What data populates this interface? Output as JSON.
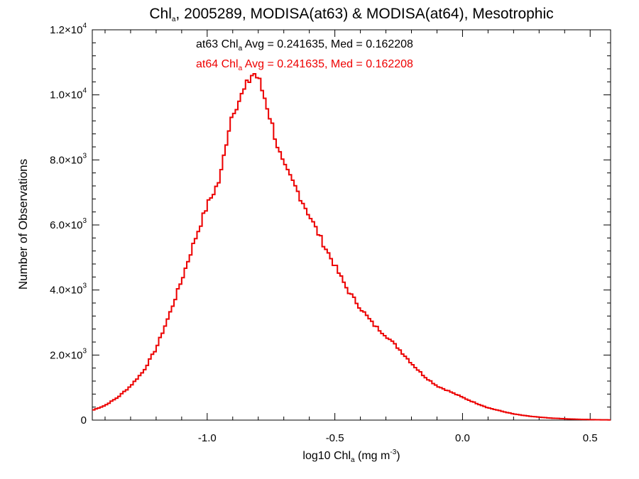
{
  "title": {
    "prefix": "Chl",
    "sub": "a",
    "rest": ", 2005289, MODISA(at63) & MODISA(at64), Mesotrophic"
  },
  "annotations": [
    {
      "label": "at63 Chl",
      "sub": "a",
      "rest": " Avg = 0.241635, Med = 0.162208",
      "color": "#000000"
    },
    {
      "label": "at64 Chl",
      "sub": "a",
      "rest": " Avg = 0.241635, Med = 0.162208",
      "color": "#ee0000"
    }
  ],
  "xaxis": {
    "label_prefix": "log10 Chl",
    "label_sub": "a",
    "label_rest": " (mg m",
    "label_sup": "-3",
    "label_end": ")"
  },
  "yaxis": {
    "label": "Number of Observations"
  },
  "colors": {
    "at63": "#000000",
    "at64": "#ee0000",
    "axes": "#000000"
  },
  "chart_data": {
    "type": "line",
    "step": true,
    "xlim": [
      -1.45,
      0.58
    ],
    "ylim": [
      0,
      12000
    ],
    "x_ticks": [
      {
        "value": -1.0,
        "label": "-1.0"
      },
      {
        "value": -0.5,
        "label": "-0.5"
      },
      {
        "value": 0.0,
        "label": "0.0"
      },
      {
        "value": 0.5,
        "label": "0.5"
      }
    ],
    "y_ticks": [
      {
        "value": 0,
        "mant": "0",
        "exp": ""
      },
      {
        "value": 2000,
        "mant": "2.0×10",
        "exp": "3"
      },
      {
        "value": 4000,
        "mant": "4.0×10",
        "exp": "3"
      },
      {
        "value": 6000,
        "mant": "6.0×10",
        "exp": "3"
      },
      {
        "value": 8000,
        "mant": "8.0×10",
        "exp": "3"
      },
      {
        "value": 10000,
        "mant": "1.0×10",
        "exp": "4"
      },
      {
        "value": 12000,
        "mant": "1.2×10",
        "exp": "4"
      }
    ],
    "curve_points": [
      [
        -1.45,
        300
      ],
      [
        -1.4,
        450
      ],
      [
        -1.35,
        700
      ],
      [
        -1.3,
        1050
      ],
      [
        -1.25,
        1500
      ],
      [
        -1.2,
        2200
      ],
      [
        -1.15,
        3200
      ],
      [
        -1.1,
        4300
      ],
      [
        -1.05,
        5500
      ],
      [
        -1.0,
        6600
      ],
      [
        -0.95,
        7400
      ],
      [
        -0.92,
        8800
      ],
      [
        -0.9,
        9500
      ],
      [
        -0.87,
        9900
      ],
      [
        -0.85,
        10200
      ],
      [
        -0.82,
        10700
      ],
      [
        -0.8,
        10500
      ],
      [
        -0.77,
        9800
      ],
      [
        -0.75,
        9200
      ],
      [
        -0.72,
        8300
      ],
      [
        -0.7,
        7800
      ],
      [
        -0.65,
        7100
      ],
      [
        -0.6,
        6300
      ],
      [
        -0.55,
        5500
      ],
      [
        -0.5,
        4750
      ],
      [
        -0.45,
        4000
      ],
      [
        -0.4,
        3450
      ],
      [
        -0.35,
        2950
      ],
      [
        -0.3,
        2600
      ],
      [
        -0.25,
        2200
      ],
      [
        -0.2,
        1750
      ],
      [
        -0.15,
        1350
      ],
      [
        -0.1,
        1050
      ],
      [
        -0.05,
        880
      ],
      [
        0.0,
        700
      ],
      [
        0.05,
        530
      ],
      [
        0.1,
        380
      ],
      [
        0.15,
        280
      ],
      [
        0.2,
        190
      ],
      [
        0.25,
        130
      ],
      [
        0.3,
        90
      ],
      [
        0.35,
        60
      ],
      [
        0.4,
        40
      ],
      [
        0.45,
        25
      ],
      [
        0.5,
        15
      ],
      [
        0.58,
        5
      ]
    ],
    "series": [
      {
        "name": "at63",
        "color": "#000000"
      },
      {
        "name": "at64",
        "color": "#ee0000"
      }
    ],
    "bin_width": 0.01,
    "grid": false
  }
}
